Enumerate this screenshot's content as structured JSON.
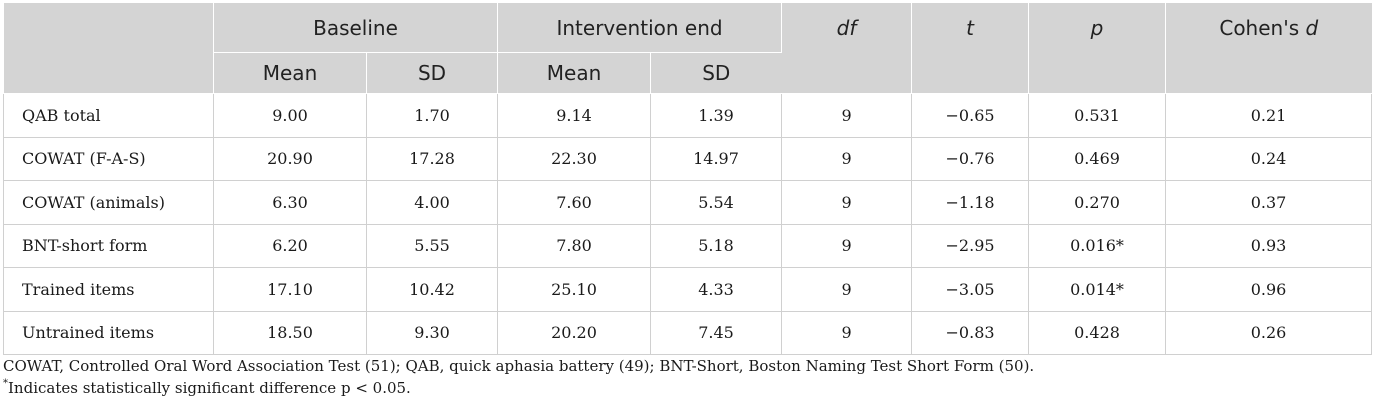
{
  "header": {
    "baseline": "Baseline",
    "intervention_end": "Intervention end",
    "df": "df",
    "t": "t",
    "p": "p",
    "cohens_d_prefix": "Cohen's ",
    "cohens_d_italic": "d",
    "mean": "Mean",
    "sd": "SD"
  },
  "rows": [
    {
      "label": "QAB total",
      "b_mean": "9.00",
      "b_sd": "1.70",
      "i_mean": "9.14",
      "i_sd": "1.39",
      "df": "9",
      "t": "−0.65",
      "p": "0.531",
      "d": "0.21"
    },
    {
      "label": "COWAT (F-A-S)",
      "b_mean": "20.90",
      "b_sd": "17.28",
      "i_mean": "22.30",
      "i_sd": "14.97",
      "df": "9",
      "t": "−0.76",
      "p": "0.469",
      "d": "0.24"
    },
    {
      "label": "COWAT (animals)",
      "b_mean": "6.30",
      "b_sd": "4.00",
      "i_mean": "7.60",
      "i_sd": "5.54",
      "df": "9",
      "t": "−1.18",
      "p": "0.270",
      "d": "0.37"
    },
    {
      "label": "BNT-short form",
      "b_mean": "6.20",
      "b_sd": "5.55",
      "i_mean": "7.80",
      "i_sd": "5.18",
      "df": "9",
      "t": "−2.95",
      "p": "0.016*",
      "d": "0.93"
    },
    {
      "label": "Trained items",
      "b_mean": "17.10",
      "b_sd": "10.42",
      "i_mean": "25.10",
      "i_sd": "4.33",
      "df": "9",
      "t": "−3.05",
      "p": "0.014*",
      "d": "0.96"
    },
    {
      "label": "Untrained items",
      "b_mean": "18.50",
      "b_sd": "9.30",
      "i_mean": "20.20",
      "i_sd": "7.45",
      "df": "9",
      "t": "−0.83",
      "p": "0.428",
      "d": "0.26"
    }
  ],
  "notes": {
    "abbreviations": "COWAT, Controlled Oral Word Association Test (51); QAB, quick aphasia battery (49); BNT-Short, Boston Naming Test Short Form (50).",
    "significance_mark": "*",
    "significance_text": "Indicates statistically significant difference p < 0.05."
  }
}
